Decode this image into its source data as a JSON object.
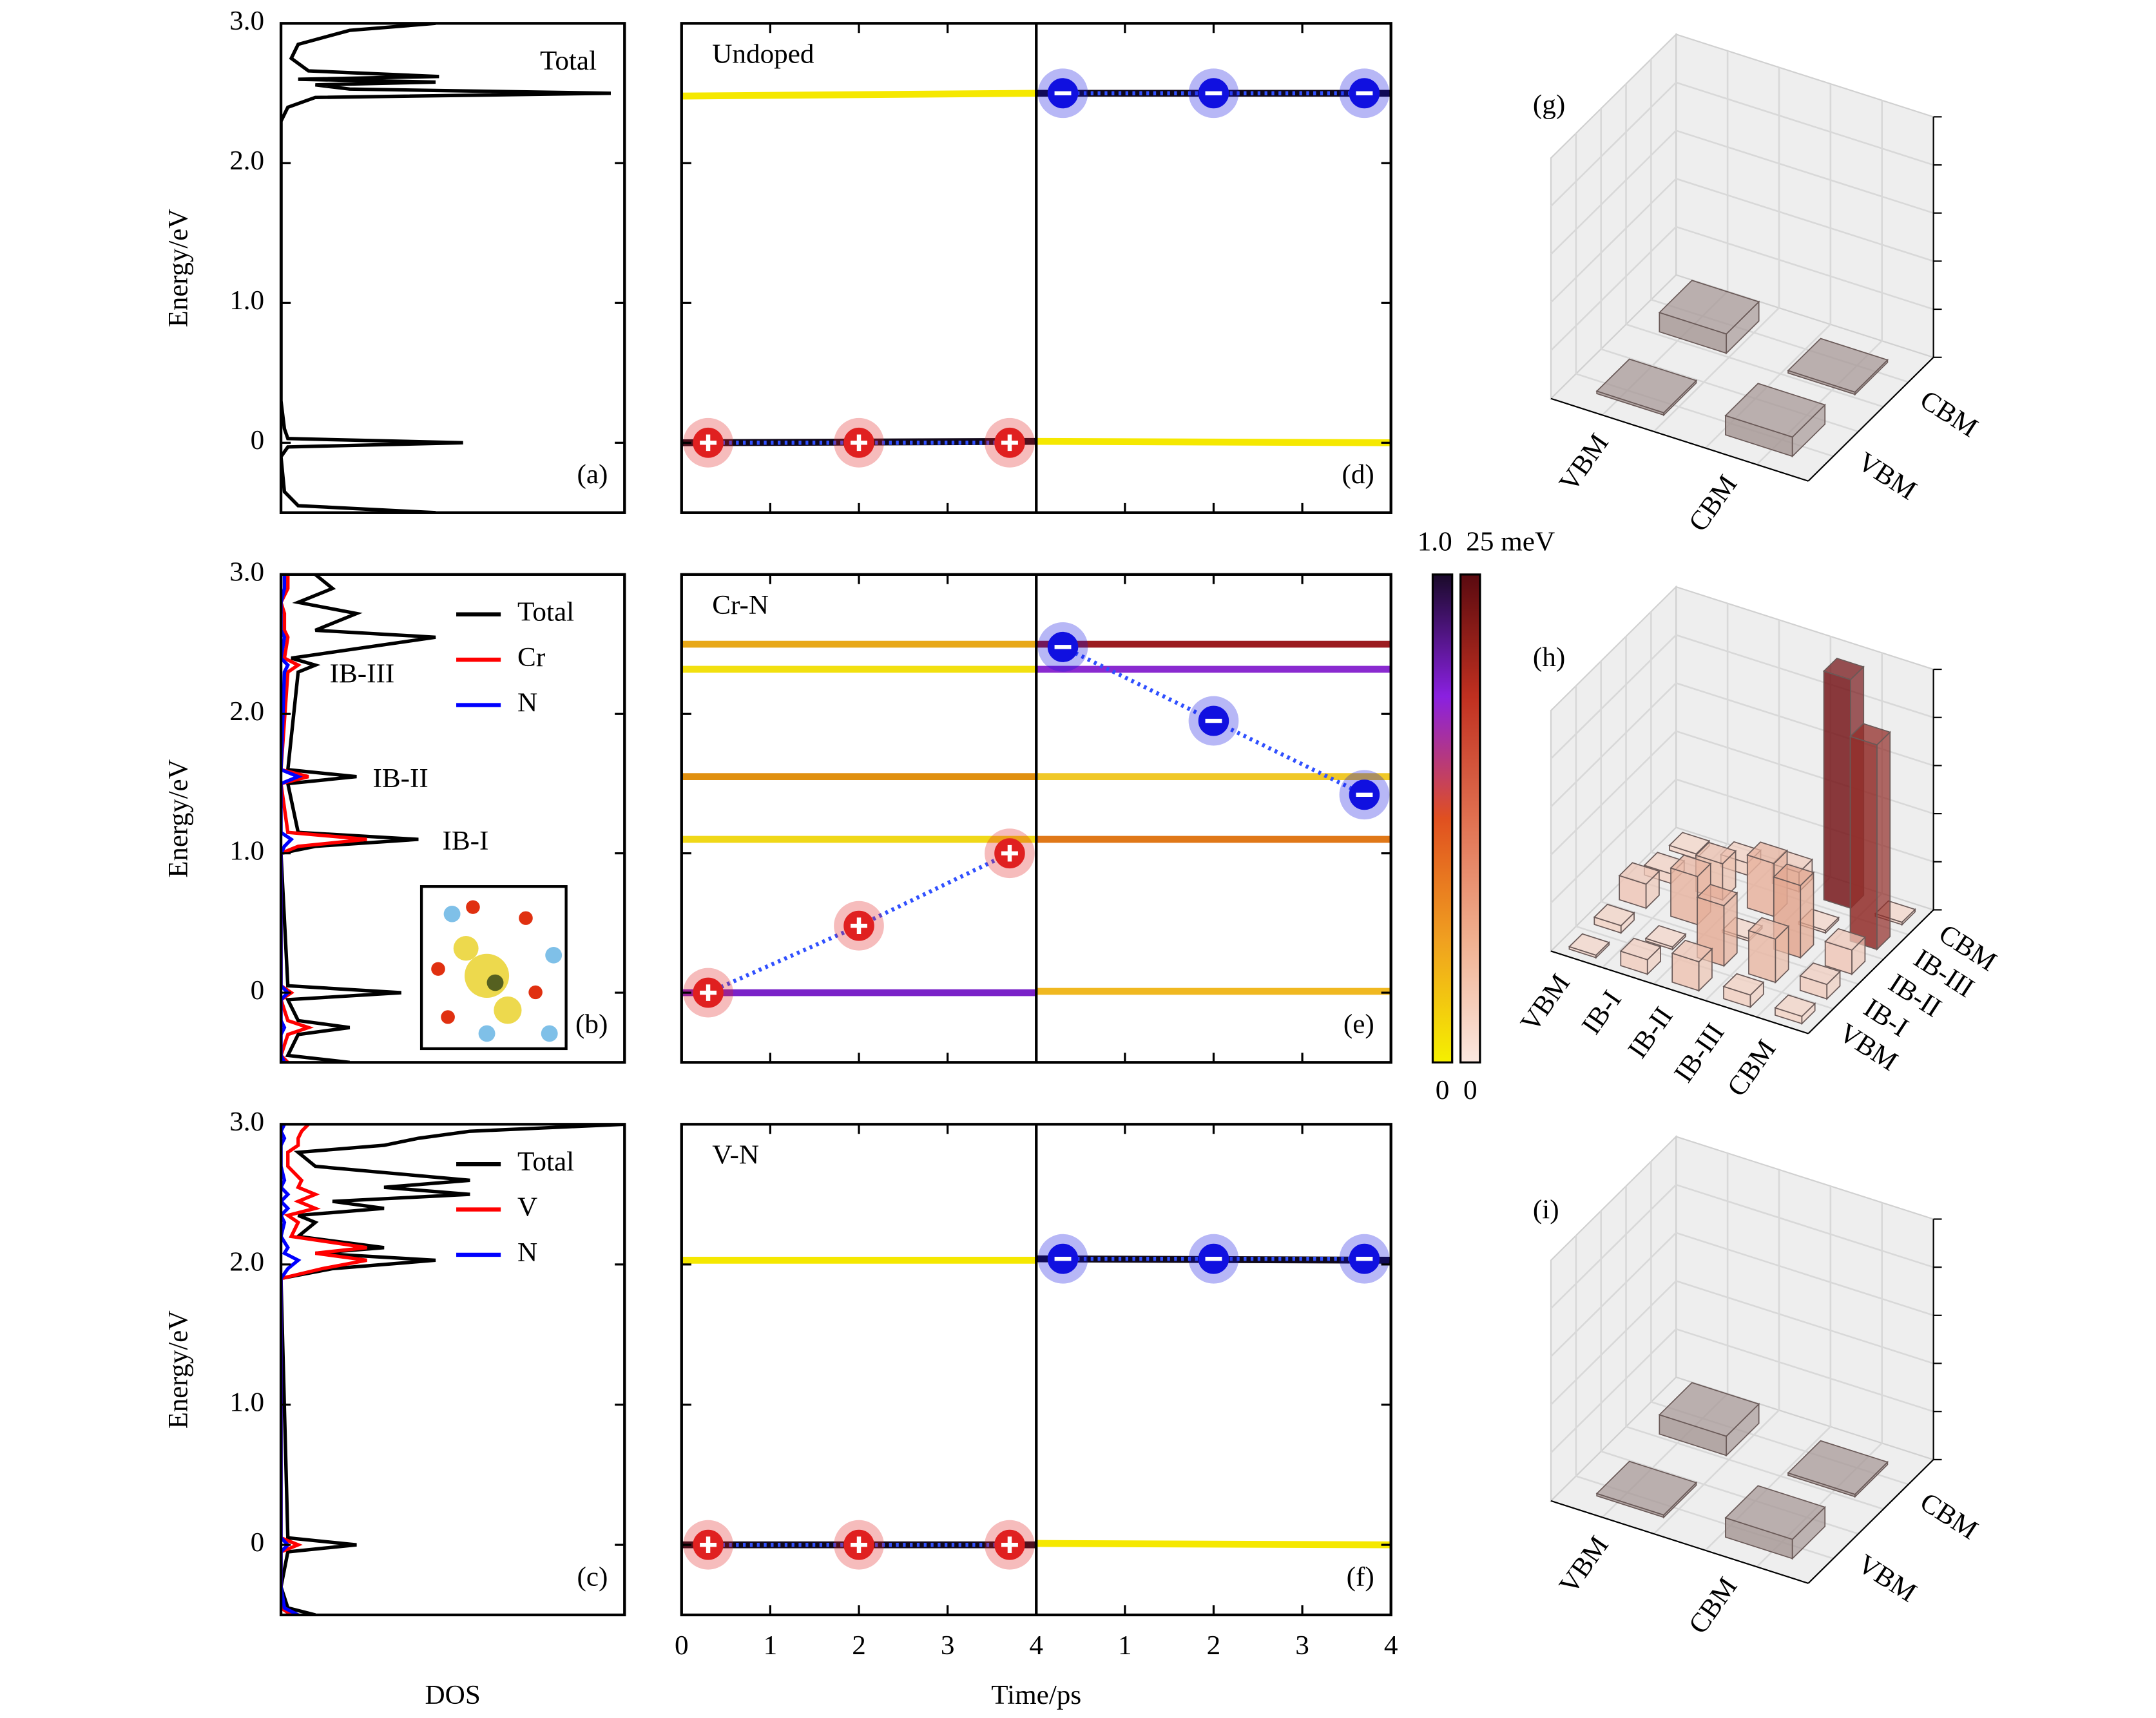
{
  "chart_data": [
    {
      "type": "density",
      "panel_label": "(a)",
      "ylabel": "Energy/eV",
      "ylim": [
        -0.5,
        3.0
      ],
      "yticks": [
        {
          "value": 3,
          "label": "3.0"
        },
        {
          "value": 2,
          "label": "2.0"
        },
        {
          "value": 1,
          "label": "1.0"
        },
        0
      ],
      "xlim": [
        0,
        1
      ],
      "legend": "upper right",
      "legend_lines": false,
      "y": [
        -0.5,
        -0.45,
        -0.35,
        -0.1,
        -0.03,
        0,
        0.03,
        0.1,
        0.3,
        2.3,
        2.4,
        2.47,
        2.5,
        2.53,
        2.56,
        2.58,
        2.6,
        2.62,
        2.66,
        2.75,
        2.85,
        2.95,
        3.0
      ],
      "series": [
        {
          "name": "Total",
          "color": "#000000",
          "values": [
            0.45,
            0.05,
            0.01,
            0.0,
            0.02,
            0.53,
            0.02,
            0.01,
            0.0,
            0.0,
            0.02,
            0.1,
            0.96,
            0.2,
            0.1,
            0.45,
            0.05,
            0.46,
            0.08,
            0.03,
            0.05,
            0.2,
            0.45
          ]
        }
      ]
    },
    {
      "type": "density",
      "panel_label": "(b)",
      "ylabel": "Energy/eV",
      "ylim": [
        -0.5,
        3.0
      ],
      "yticks": [
        {
          "value": 3,
          "label": "3.0"
        },
        {
          "value": 2,
          "label": "2.0"
        },
        {
          "value": 1,
          "label": "1.0"
        },
        0
      ],
      "xlim": [
        0,
        1
      ],
      "legend": "upper right",
      "legend_lines": true,
      "y": [
        -0.5,
        -0.45,
        -0.3,
        -0.25,
        -0.2,
        -0.05,
        0,
        0.05,
        1.0,
        1.05,
        1.1,
        1.15,
        1.5,
        1.55,
        1.6,
        2.3,
        2.35,
        2.4,
        2.55,
        2.6,
        2.72,
        2.8,
        2.9,
        3.0
      ],
      "series": [
        {
          "name": "Total",
          "color": "#000000",
          "values": [
            0.2,
            0.02,
            0.05,
            0.2,
            0.05,
            0.02,
            0.35,
            0.02,
            0.0,
            0.1,
            0.4,
            0.05,
            0.02,
            0.22,
            0.02,
            0.05,
            0.1,
            0.03,
            0.45,
            0.1,
            0.22,
            0.05,
            0.15,
            0.1
          ]
        },
        {
          "name": "Cr",
          "color": "#ff0000",
          "values": [
            0.02,
            0.0,
            0.02,
            0.08,
            0.02,
            0.0,
            0.03,
            0.0,
            0.0,
            0.05,
            0.25,
            0.02,
            0.0,
            0.08,
            0.0,
            0.02,
            0.05,
            0.01,
            0.02,
            0.01,
            0.01,
            0.0,
            0.02,
            0.02
          ]
        },
        {
          "name": "N",
          "color": "#0000ff",
          "values": [
            0.01,
            0,
            0,
            0.01,
            0,
            0,
            0.02,
            0,
            0,
            0.01,
            0.03,
            0,
            0,
            0.05,
            0,
            0.01,
            0.02,
            0,
            0.01,
            0,
            0,
            0,
            0.01,
            0.01
          ]
        }
      ],
      "annotations": [
        {
          "text": "IB-III",
          "y": 2.3
        },
        {
          "text": "IB-II",
          "y": 1.55
        },
        {
          "text": "IB-I",
          "y": 1.1
        }
      ]
    },
    {
      "type": "density",
      "panel_label": "(c)",
      "ylabel": "Energy/eV",
      "xlabel": "DOS",
      "ylim": [
        -0.5,
        3.0
      ],
      "yticks": [
        {
          "value": 3,
          "label": "3.0"
        },
        {
          "value": 2,
          "label": "2.0"
        },
        {
          "value": 1,
          "label": "1.0"
        },
        0
      ],
      "xlim": [
        0,
        1
      ],
      "legend": "upper right",
      "legend_lines": true,
      "y": [
        -0.5,
        -0.45,
        -0.3,
        -0.05,
        0,
        0.05,
        1.9,
        1.97,
        2.03,
        2.08,
        2.12,
        2.2,
        2.3,
        2.35,
        2.4,
        2.45,
        2.5,
        2.55,
        2.6,
        2.7,
        2.8,
        2.85,
        2.9,
        2.95,
        3.0
      ],
      "series": [
        {
          "name": "Total",
          "color": "#000000",
          "values": [
            0.1,
            0.02,
            0.0,
            0.02,
            0.22,
            0.02,
            0.0,
            0.15,
            0.45,
            0.1,
            0.3,
            0.05,
            0.1,
            0.05,
            0.3,
            0.15,
            0.55,
            0.3,
            0.55,
            0.1,
            0.05,
            0.3,
            0.4,
            0.55,
            1.0
          ]
        },
        {
          "name": "V",
          "color": "#ff0000",
          "values": [
            0.03,
            0.0,
            0,
            0.0,
            0.05,
            0,
            0,
            0.12,
            0.25,
            0.1,
            0.25,
            0.03,
            0.05,
            0.02,
            0.1,
            0.05,
            0.1,
            0.05,
            0.06,
            0.02,
            0.02,
            0.05,
            0.05,
            0.06,
            0.08
          ]
        },
        {
          "name": "N",
          "color": "#0000ff",
          "values": [
            0.05,
            0.01,
            0,
            0,
            0.02,
            0,
            0,
            0.02,
            0.05,
            0.01,
            0.02,
            0,
            0.01,
            0,
            0.02,
            0,
            0.02,
            0,
            0.01,
            0,
            0,
            0,
            0.01,
            0,
            0.01
          ]
        }
      ]
    },
    {
      "type": "line",
      "title": "Undoped",
      "panel_label": "(d)",
      "xlim": [
        0,
        8
      ],
      "ylim": [
        -0.5,
        3.0
      ],
      "series": [
        {
          "x": [
            0,
            4
          ],
          "values": [
            2.48,
            2.5
          ],
          "color": "#f5e800"
        },
        {
          "x": [
            0,
            4
          ],
          "values": [
            0,
            0.01
          ],
          "color": "#10081a"
        },
        {
          "x": [
            4,
            8
          ],
          "values": [
            2.5,
            2.5
          ],
          "color": "#10081a"
        },
        {
          "x": [
            4,
            8
          ],
          "values": [
            0.01,
            0
          ],
          "color": "#f5e800"
        }
      ],
      "holes": {
        "x": [
          0.3,
          2,
          3.7
        ],
        "values": [
          0,
          0,
          0
        ],
        "color": "#e02020"
      },
      "electrons": {
        "x": [
          4.3,
          6,
          7.7
        ],
        "values": [
          2.5,
          2.5,
          2.5
        ],
        "color": "#1010e0"
      },
      "path_color": "#3050ff"
    },
    {
      "type": "line",
      "title": "Cr-N",
      "panel_label": "(e)",
      "xlim": [
        0,
        8
      ],
      "ylim": [
        -0.5,
        3.0
      ],
      "series": [
        {
          "x": [
            0,
            4
          ],
          "values": [
            2.5,
            2.5
          ],
          "color": "#e8a818"
        },
        {
          "x": [
            0,
            4
          ],
          "values": [
            2.32,
            2.32
          ],
          "color": "#f2e010"
        },
        {
          "x": [
            0,
            4
          ],
          "values": [
            1.55,
            1.55
          ],
          "color": "#e09010"
        },
        {
          "x": [
            0,
            4
          ],
          "values": [
            1.1,
            1.1
          ],
          "color": "#f0d818"
        },
        {
          "x": [
            0,
            4
          ],
          "values": [
            0,
            0
          ],
          "color": "#7a22c8"
        },
        {
          "x": [
            4,
            8
          ],
          "values": [
            2.5,
            2.5
          ],
          "color": "#9c1c20"
        },
        {
          "x": [
            4,
            8
          ],
          "values": [
            2.32,
            2.32
          ],
          "color": "#8a2ad0"
        },
        {
          "x": [
            4,
            8
          ],
          "values": [
            1.55,
            1.55
          ],
          "color": "#f0c828"
        },
        {
          "x": [
            4,
            8
          ],
          "values": [
            1.1,
            1.1
          ],
          "color": "#e07818"
        },
        {
          "x": [
            4,
            8
          ],
          "values": [
            0.01,
            0.01
          ],
          "color": "#f0b820"
        }
      ],
      "holes": {
        "x": [
          0.3,
          2,
          3.7
        ],
        "values": [
          0,
          0.48,
          1.0
        ],
        "color": "#e02020"
      },
      "electrons": {
        "x": [
          4.3,
          6,
          7.7
        ],
        "values": [
          2.48,
          1.95,
          1.42
        ],
        "color": "#1010e0"
      },
      "path_color": "#3050ff",
      "colorbars": [
        {
          "colors": [
            "#f5f000",
            "#f0a020",
            "#e05020",
            "#8a20e0",
            "#1a0a2a"
          ],
          "lim": [
            0,
            1
          ],
          "ticks": [
            0,
            {
              "value": 1,
              "label": "1.0"
            }
          ]
        },
        {
          "colors": [
            "#fbe8e0",
            "#f0b090",
            "#e07050",
            "#c03020",
            "#5a0a10"
          ],
          "lim": [
            0,
            25
          ],
          "ticks": [
            0,
            {
              "value": 25,
              "label": "25 meV"
            }
          ]
        }
      ]
    },
    {
      "type": "line",
      "title": "V-N",
      "panel_label": "(f)",
      "xlabel": "Time/ps",
      "xlim": [
        0,
        8
      ],
      "ylim": [
        -0.5,
        3.0
      ],
      "xticks": [
        0,
        1,
        2,
        3,
        4,
        {
          "value": 5,
          "label": "1"
        },
        {
          "value": 6,
          "label": "2"
        },
        {
          "value": 7,
          "label": "3"
        },
        {
          "value": 8,
          "label": "4"
        }
      ],
      "series": [
        {
          "x": [
            0,
            4
          ],
          "values": [
            2.03,
            2.03
          ],
          "color": "#f5e800"
        },
        {
          "x": [
            0,
            4
          ],
          "values": [
            0,
            0
          ],
          "color": "#10081a"
        },
        {
          "x": [
            4,
            8
          ],
          "values": [
            2.04,
            2.03
          ],
          "color": "#10081a"
        },
        {
          "x": [
            4,
            8
          ],
          "values": [
            0.01,
            0
          ],
          "color": "#f5e800"
        }
      ],
      "holes": {
        "x": [
          0.3,
          2,
          3.7
        ],
        "values": [
          0,
          0,
          0
        ],
        "color": "#e02020"
      },
      "electrons": {
        "x": [
          4.3,
          6,
          7.7
        ],
        "values": [
          2.04,
          2.04,
          2.04
        ],
        "color": "#1010e0"
      },
      "path_color": "#3050ff"
    },
    {
      "type": "bar3d",
      "panel_label": "(g)",
      "categories": [
        "VBM",
        "CBM"
      ],
      "zlim": [
        0,
        1
      ],
      "color": "#a89a98",
      "values": [
        [
          0.01,
          0.08
        ],
        [
          0.08,
          0.01
        ]
      ]
    },
    {
      "type": "bar3d",
      "panel_label": "(h)",
      "categories": [
        "VBM",
        "IB-I",
        "IB-II",
        "IB-III",
        "CBM"
      ],
      "zlim": [
        0,
        1
      ],
      "colors": [
        "#f4d8cc",
        "#e0a088",
        "#c05040",
        "#6a0e14"
      ],
      "values": [
        [
          0.01,
          0.03,
          0.1,
          0.04,
          0.02
        ],
        [
          0.06,
          0.01,
          0.2,
          0.15,
          0.05
        ],
        [
          0.12,
          0.25,
          0.01,
          0.22,
          0.08
        ],
        [
          0.05,
          0.18,
          0.3,
          0.01,
          0.95
        ],
        [
          0.03,
          0.06,
          0.1,
          0.85,
          0.01
        ]
      ]
    },
    {
      "type": "bar3d",
      "panel_label": "(i)",
      "categories": [
        "VBM",
        "CBM"
      ],
      "zlim": [
        0,
        1
      ],
      "color": "#a89a98",
      "values": [
        [
          0.01,
          0.08
        ],
        [
          0.08,
          0.01
        ]
      ]
    }
  ]
}
